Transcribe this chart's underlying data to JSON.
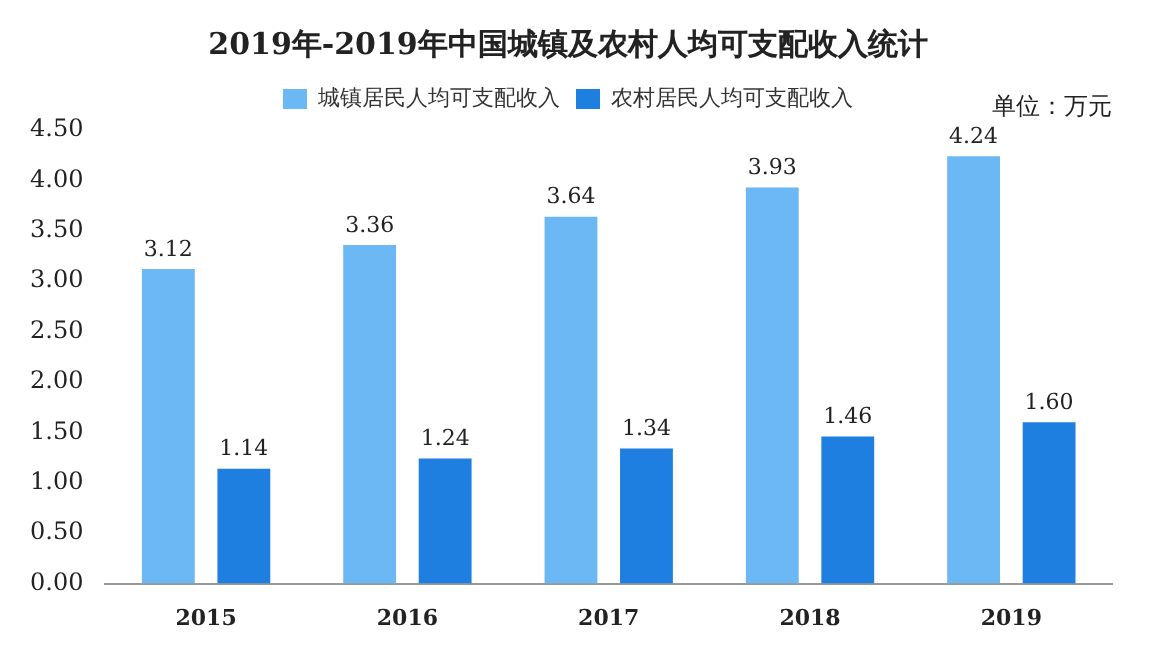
{
  "chart_data": {
    "type": "bar",
    "title": "2019年-2019年中国城镇及农村人均可支配收入统计",
    "categories": [
      "2015",
      "2016",
      "2017",
      "2018",
      "2019"
    ],
    "series": [
      {
        "name": "城镇居民人均可支配收入",
        "color": "#6cb8f4",
        "values": [
          3.12,
          3.36,
          3.64,
          3.93,
          4.24
        ],
        "value_labels": [
          "3.12",
          "3.36",
          "3.64",
          "3.93",
          "4.24"
        ]
      },
      {
        "name": "农村居民人均可支配收入",
        "color": "#1f7fe0",
        "values": [
          1.14,
          1.24,
          1.34,
          1.46,
          1.6
        ],
        "value_labels": [
          "1.14",
          "1.24",
          "1.34",
          "1.46",
          "1.60"
        ]
      }
    ],
    "ylim": [
      0,
      4.5
    ],
    "yticks": [
      {
        "value": 0,
        "label": "0.00"
      },
      {
        "value": 0.5,
        "label": "0.50"
      },
      {
        "value": 1,
        "label": "1.00"
      },
      {
        "value": 1.5,
        "label": "1.50"
      },
      {
        "value": 2,
        "label": "2.00"
      },
      {
        "value": 2.5,
        "label": "2.50"
      },
      {
        "value": 3,
        "label": "3.00"
      },
      {
        "value": 3.5,
        "label": "3.50"
      },
      {
        "value": 4,
        "label": "4.00"
      },
      {
        "value": 4.5,
        "label": "4.50"
      }
    ],
    "annotations": [
      "单位：万元"
    ],
    "legend": "top",
    "grid": false
  }
}
